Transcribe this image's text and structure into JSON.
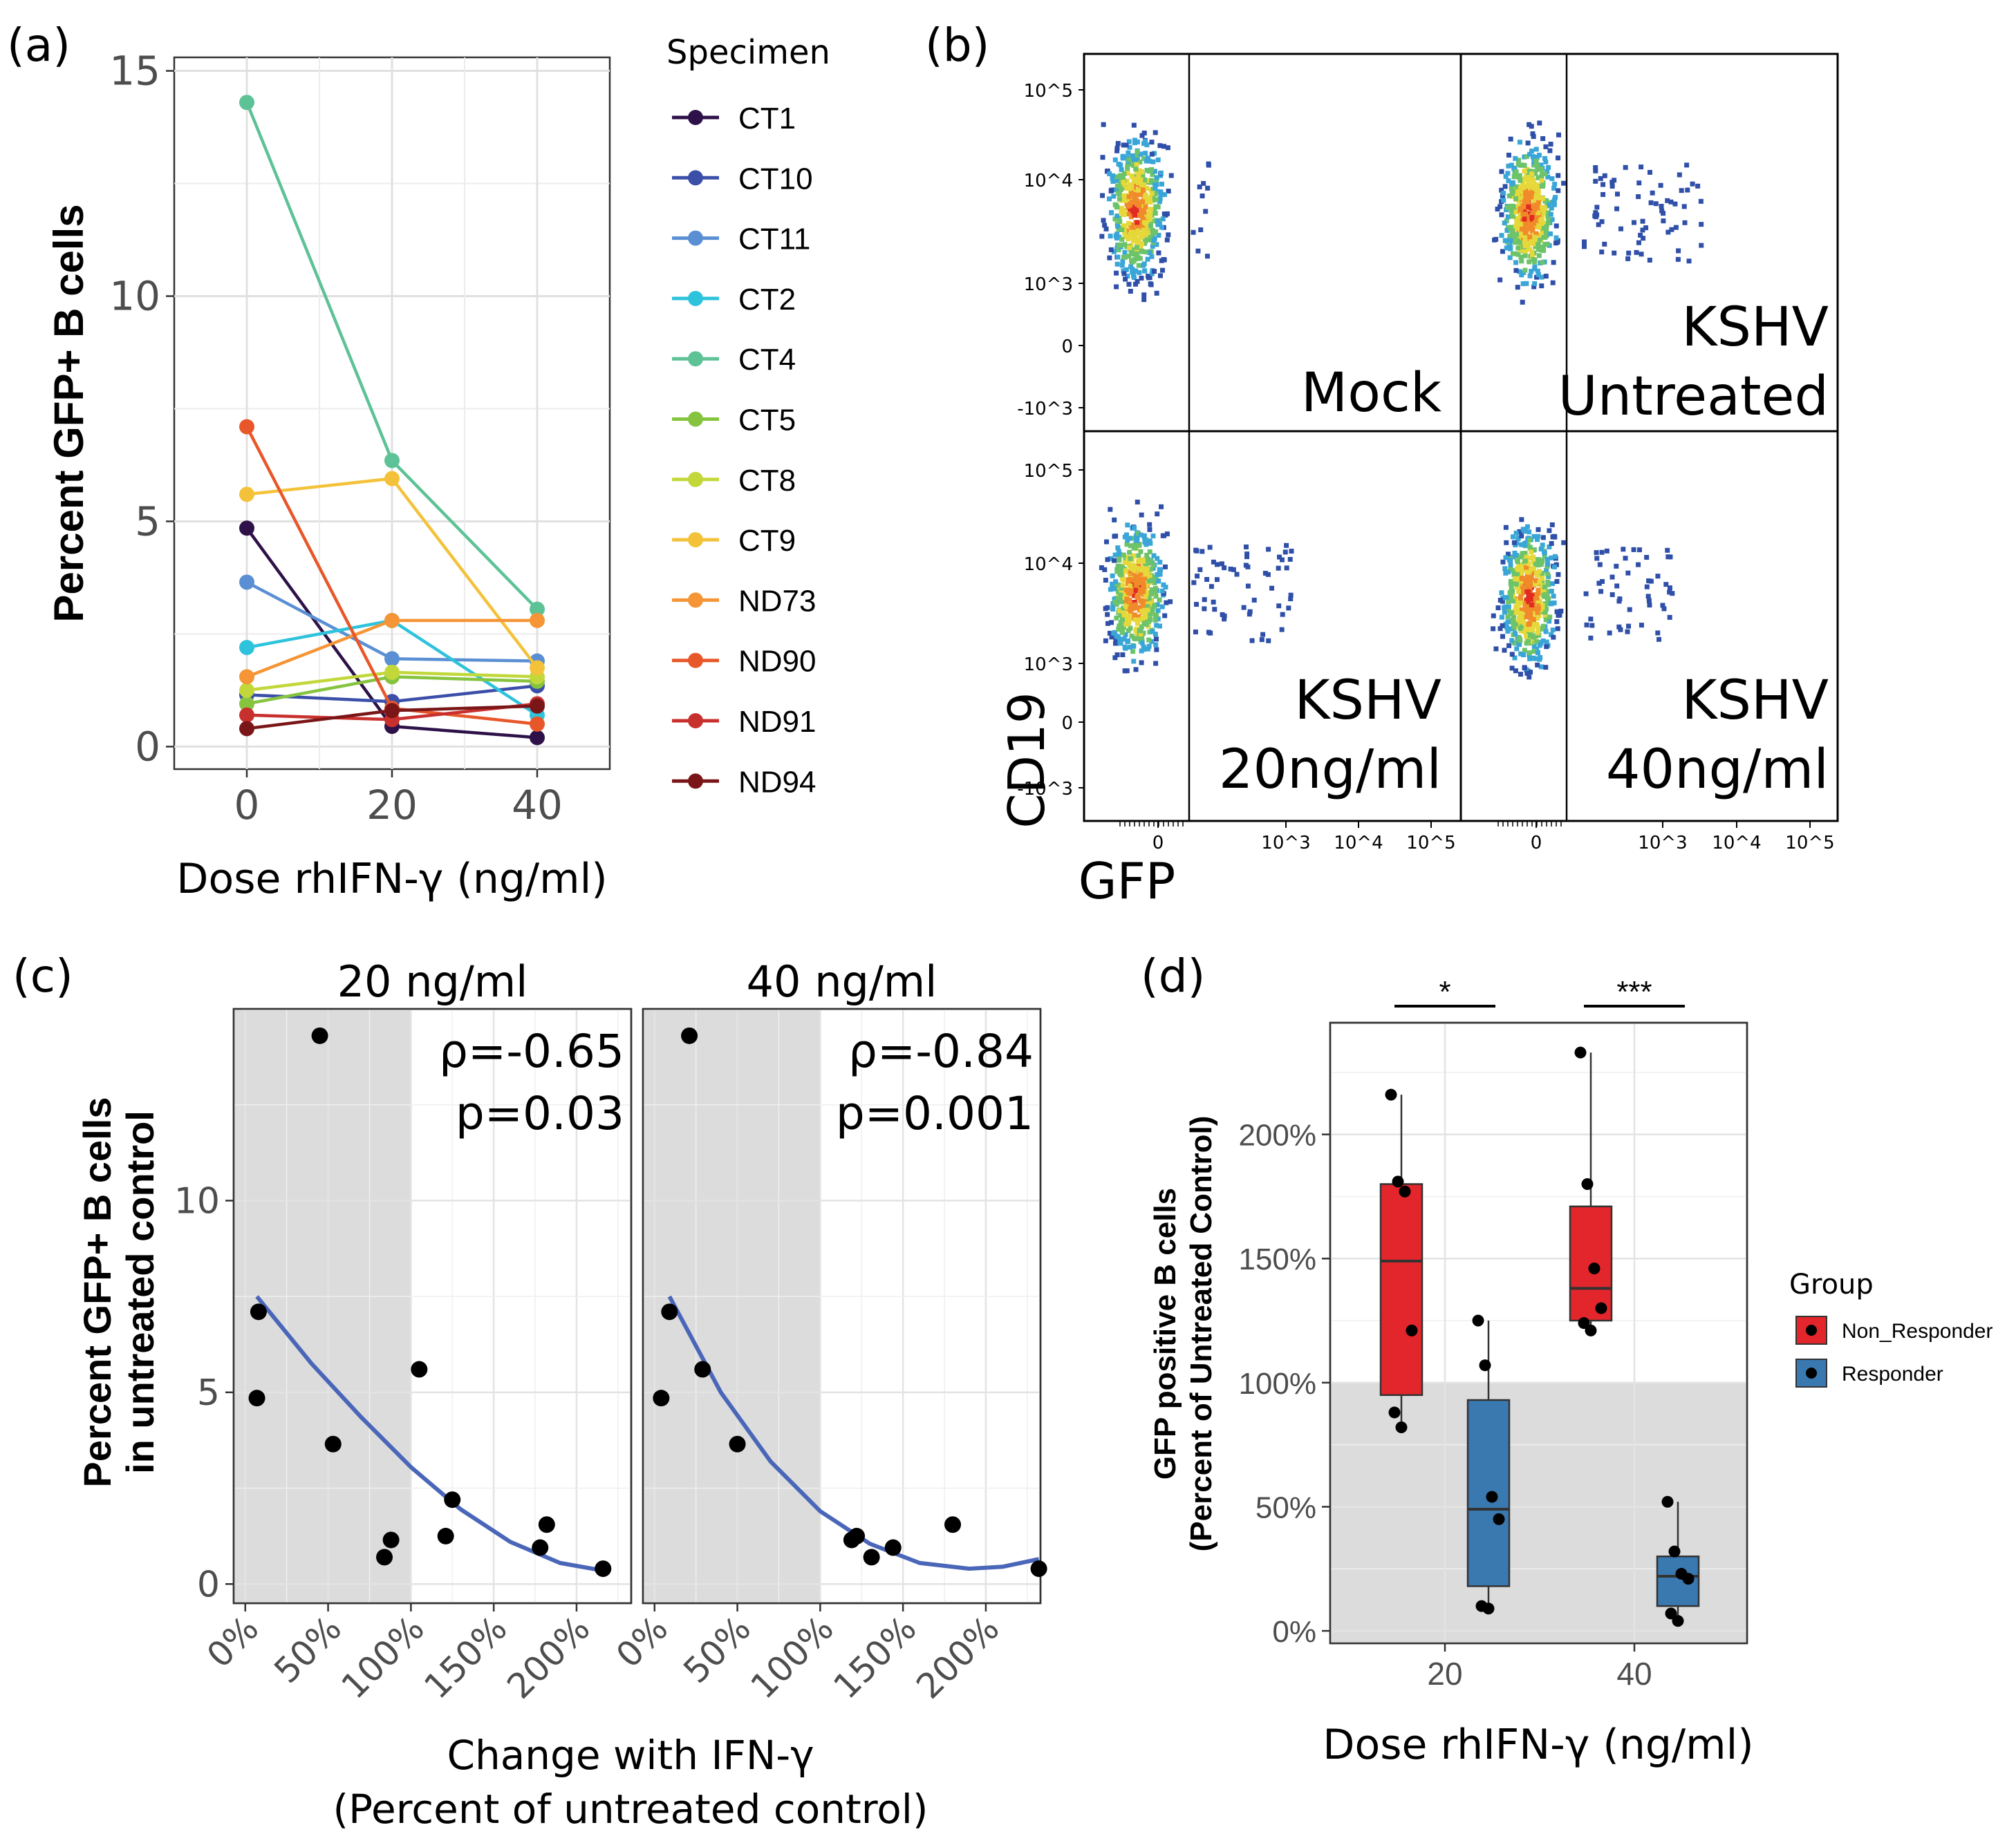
{
  "colors": {
    "panel_bg": "#ebebeb",
    "grid": "#ffffff",
    "shade": "#dcdcdc",
    "fit_line": "#4a66b8",
    "non_responder": "#e3262b",
    "responder": "#3a78b0"
  },
  "chart_data": [
    {
      "panel": "(a)",
      "type": "line",
      "title": "",
      "xlabel": "Dose rhIFN-γ (ng/ml)",
      "ylabel": "Percent GFP+ B cells",
      "x": [
        0,
        20,
        40
      ],
      "xticks": [
        "0",
        "20",
        "40"
      ],
      "yticks": [
        "0",
        "5",
        "10",
        "15"
      ],
      "xlim": [
        -10,
        50
      ],
      "ylim": [
        -0.5,
        15.3
      ],
      "legend_title": "Specimen",
      "series": [
        {
          "name": "CT1",
          "color": "#2d1148",
          "values": [
            4.85,
            0.45,
            0.2
          ]
        },
        {
          "name": "CT10",
          "color": "#3b4ea8",
          "values": [
            1.15,
            1.0,
            1.35
          ]
        },
        {
          "name": "CT11",
          "color": "#5a8fd4",
          "values": [
            3.65,
            1.95,
            1.9
          ]
        },
        {
          "name": "CT2",
          "color": "#2ec3dc",
          "values": [
            2.2,
            2.8,
            0.7
          ]
        },
        {
          "name": "CT4",
          "color": "#5dc296",
          "values": [
            14.3,
            6.35,
            3.05
          ]
        },
        {
          "name": "CT5",
          "color": "#86c440",
          "values": [
            0.95,
            1.55,
            1.45
          ]
        },
        {
          "name": "CT8",
          "color": "#c2d83a",
          "values": [
            1.25,
            1.65,
            1.55
          ]
        },
        {
          "name": "CT9",
          "color": "#f4c23a",
          "values": [
            5.6,
            5.95,
            1.75
          ]
        },
        {
          "name": "ND73",
          "color": "#f59535",
          "values": [
            1.55,
            2.8,
            2.8
          ]
        },
        {
          "name": "ND90",
          "color": "#e8572a",
          "values": [
            7.1,
            0.85,
            0.5
          ]
        },
        {
          "name": "ND91",
          "color": "#c8302e",
          "values": [
            0.7,
            0.6,
            0.95
          ]
        },
        {
          "name": "ND94",
          "color": "#7a1618",
          "values": [
            0.4,
            0.8,
            0.9
          ]
        }
      ]
    },
    {
      "panel": "(b)",
      "type": "scatter",
      "subtype": "flow cytometry density plots",
      "xlabel": "GFP",
      "ylabel": "CD19",
      "x_ticks": [
        "0",
        "10^3",
        "10^4",
        "10^5"
      ],
      "y_ticks": [
        "10^5",
        "10^4",
        "10^3",
        "0",
        "-10^3"
      ],
      "panels": [
        {
          "line1": "",
          "line2": "Mock"
        },
        {
          "line1": "KSHV",
          "line2": "Untreated"
        },
        {
          "line1": "KSHV",
          "line2": "20ng/ml"
        },
        {
          "line1": "KSHV",
          "line2": "40ng/ml"
        }
      ]
    },
    {
      "panel": "(c)",
      "type": "scatter",
      "xlabel": "Change with IFN-γ",
      "xlabel2": "(Percent of untreated control)",
      "ylabel": "Percent GFP+ B cells",
      "ylabel2": "in untreated control",
      "xticks": [
        "0%",
        "50%",
        "100%",
        "150%",
        "200%"
      ],
      "yticks": [
        "0",
        "5",
        "10"
      ],
      "xlim": [
        -7,
        233
      ],
      "ylim": [
        -0.5,
        15
      ],
      "shaded_x_range": [
        -7,
        100
      ],
      "facets": [
        {
          "title": "20 ng/ml",
          "stat1": "ρ=-0.65",
          "stat2": "p=0.03",
          "x": [
            45,
            8,
            7,
            53,
            105,
            84,
            88,
            125,
            121,
            182,
            178,
            216
          ],
          "y": [
            14.3,
            7.1,
            4.85,
            3.65,
            5.6,
            0.7,
            1.15,
            2.2,
            1.25,
            1.55,
            0.95,
            0.4
          ],
          "fit_y_at_x": {
            "x": [
              7,
              40,
              70,
              100,
              130,
              160,
              190,
              216
            ],
            "y": [
              7.5,
              5.75,
              4.35,
              3.05,
              1.95,
              1.1,
              0.55,
              0.35
            ]
          }
        },
        {
          "title": "40 ng/ml",
          "stat1": "ρ=-0.84",
          "stat2": "p=0.001",
          "x": [
            21,
            9,
            4,
            29,
            50,
            119,
            122,
            131,
            144,
            180,
            232
          ],
          "y": [
            14.3,
            7.1,
            4.85,
            5.6,
            3.65,
            1.15,
            1.25,
            0.7,
            0.95,
            1.55,
            0.4
          ],
          "fit_y_at_x": {
            "x": [
              9,
              40,
              70,
              100,
              130,
              160,
              190,
              210,
              232
            ],
            "y": [
              7.5,
              5.0,
              3.2,
              1.9,
              1.05,
              0.55,
              0.4,
              0.45,
              0.65
            ]
          }
        }
      ]
    },
    {
      "panel": "(d)",
      "type": "box",
      "xlabel": "Dose rhIFN-γ (ng/ml)",
      "ylabel": "GFP positive B cells",
      "ylabel2": "(Percent of Untreated Control)",
      "categories": [
        "20",
        "40"
      ],
      "yticks": [
        "0%",
        "50%",
        "100%",
        "150%",
        "200%"
      ],
      "ylim": [
        -5,
        245
      ],
      "shade_below": 100,
      "legend_title": "Group",
      "significance": [
        "*",
        "***"
      ],
      "groups": [
        {
          "name": "Non_Responder",
          "color": "#e3262b",
          "boxes": [
            {
              "category": "20",
              "min": 81,
              "q1": 95,
              "median": 149,
              "q3": 180,
              "max": 216,
              "points": [
                216,
                181,
                177,
                121,
                88,
                82
              ]
            },
            {
              "category": "40",
              "min": 121,
              "q1": 125,
              "median": 138,
              "q3": 171,
              "max": 233,
              "points": [
                233,
                180,
                146,
                130,
                124,
                121
              ]
            }
          ]
        },
        {
          "name": "Responder",
          "color": "#3a78b0",
          "boxes": [
            {
              "category": "20",
              "min": 9,
              "q1": 18,
              "median": 49,
              "q3": 93,
              "max": 125,
              "points": [
                125,
                107,
                54,
                45,
                10,
                9
              ]
            },
            {
              "category": "40",
              "min": 4,
              "q1": 10,
              "median": 22,
              "q3": 30,
              "max": 52,
              "points": [
                52,
                32,
                23,
                21,
                7,
                4
              ]
            }
          ]
        }
      ]
    }
  ]
}
